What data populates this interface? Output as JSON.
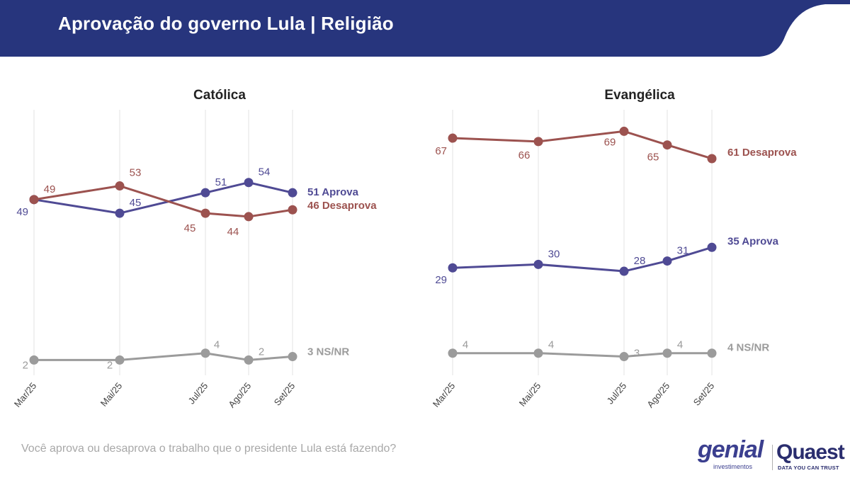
{
  "header": {
    "title": "Aprovação do governo Lula | Religião",
    "background_color": "#27357d"
  },
  "colors": {
    "aprova": "#4f4a94",
    "desaprova": "#9c524f",
    "nsnr": "#9b9b9b",
    "grid": "#e3e3e3"
  },
  "chart_data": [
    {
      "type": "line",
      "title": "Católica",
      "x": [
        "Mar/25",
        "Mai/25",
        "Jul/25",
        "Ago/25",
        "Set/25"
      ],
      "series": [
        {
          "key": "aprova",
          "values": [
            49,
            45,
            51,
            54,
            51
          ],
          "end_label": "51 Aprova"
        },
        {
          "key": "desaprova",
          "values": [
            49,
            53,
            45,
            44,
            46
          ],
          "end_label": "46 Desaprova"
        },
        {
          "key": "nsnr",
          "values": [
            2,
            2,
            4,
            2,
            3
          ],
          "end_label": "3 NS/NR"
        }
      ],
      "ylim": [
        0,
        75
      ],
      "grid": "vertical"
    },
    {
      "type": "line",
      "title": "Evangélica",
      "x": [
        "Mar/25",
        "Mai/25",
        "Jul/25",
        "Ago/25",
        "Set/25"
      ],
      "series": [
        {
          "key": "aprova",
          "values": [
            29,
            30,
            28,
            31,
            35
          ],
          "end_label": "35 Aprova"
        },
        {
          "key": "desaprova",
          "values": [
            67,
            66,
            69,
            65,
            61
          ],
          "end_label": "61 Desaprova"
        },
        {
          "key": "nsnr",
          "values": [
            4,
            4,
            3,
            4,
            4
          ],
          "end_label": "4 NS/NR"
        }
      ],
      "ylim": [
        0,
        75
      ],
      "grid": "vertical"
    }
  ],
  "footer": {
    "question": "Você aprova ou desaprova o trabalho que o presidente Lula está fazendo?",
    "logo_genial": "genial",
    "logo_genial_sub": "investimentos",
    "logo_quaest": "Quaest",
    "logo_quaest_sub": "DATA YOU CAN TRUST"
  }
}
